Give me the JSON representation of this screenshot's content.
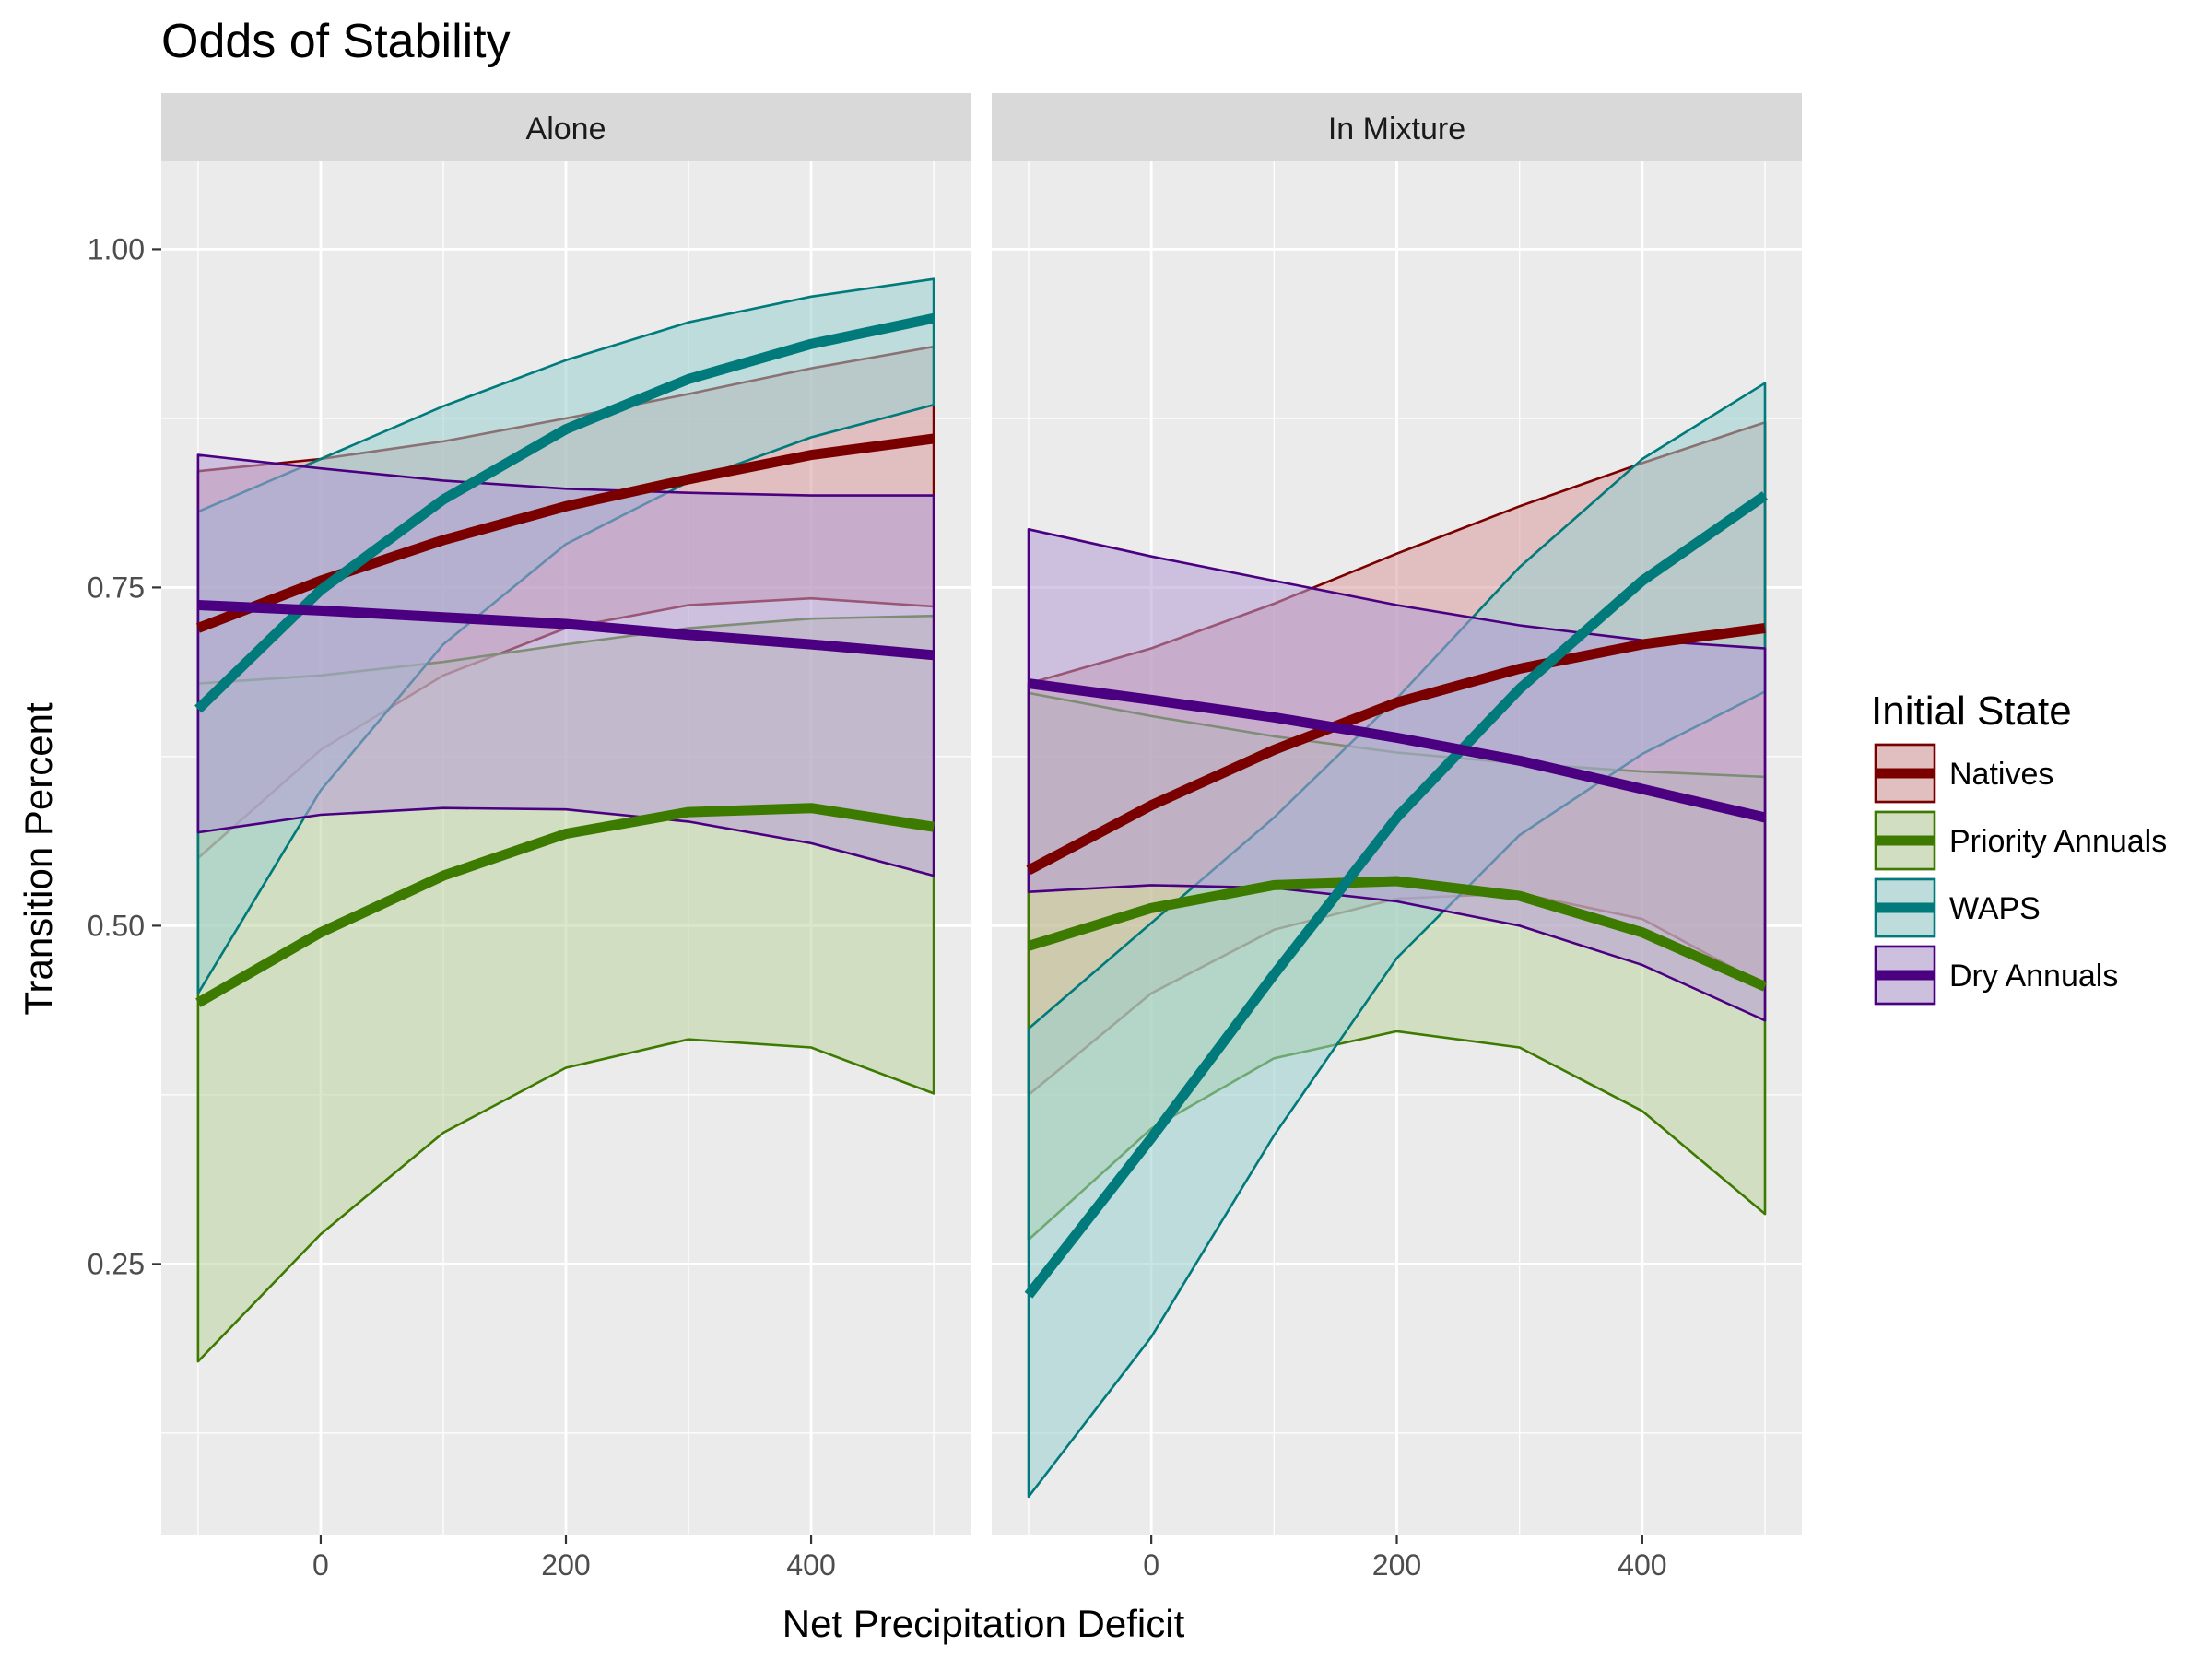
{
  "chart_data": {
    "type": "area",
    "title": "Odds of Stability",
    "xlabel": "Net Precipitation Deficit",
    "ylabel": "Transition Percent",
    "xlim": [
      -130,
      530
    ],
    "ylim": [
      0.05,
      1.065
    ],
    "x_ticks": [
      0,
      200,
      400
    ],
    "x_tick_labels": [
      "0",
      "200",
      "400"
    ],
    "y_ticks": [
      0.25,
      0.5,
      0.75,
      1.0
    ],
    "y_tick_labels": [
      "0.25",
      "0.50",
      "0.75",
      "1.00"
    ],
    "grid": true,
    "legend": {
      "title": "Initial State",
      "placement": "right",
      "entries": [
        "Natives",
        "Priority Annuals",
        "WAPS",
        "Dry Annuals"
      ]
    },
    "x": [
      -100,
      0,
      100,
      200,
      300,
      400,
      500
    ],
    "series_styles": [
      {
        "name": "Natives",
        "color": "#7a0000",
        "fill": "#d8999c"
      },
      {
        "name": "Priority Annuals",
        "color": "#3d7a00",
        "fill": "#bed49e"
      },
      {
        "name": "WAPS",
        "color": "#007a7a",
        "fill": "#99d0d0"
      },
      {
        "name": "Dry Annuals",
        "color": "#4b0082",
        "fill": "#b49cd6"
      }
    ],
    "panels": [
      {
        "strip": "Alone",
        "series": [
          {
            "name": "Natives",
            "values": [
              0.72,
              0.755,
              0.785,
              0.81,
              0.83,
              0.848,
              0.86
            ],
            "lower": [
              0.55,
              0.63,
              0.685,
              0.72,
              0.737,
              0.742,
              0.736
            ],
            "upper": [
              0.836,
              0.845,
              0.858,
              0.875,
              0.893,
              0.912,
              0.928
            ]
          },
          {
            "name": "Priority Annuals",
            "values": [
              0.443,
              0.495,
              0.537,
              0.568,
              0.584,
              0.587,
              0.573
            ],
            "lower": [
              0.178,
              0.272,
              0.347,
              0.395,
              0.416,
              0.41,
              0.376
            ],
            "upper": [
              0.679,
              0.685,
              0.695,
              0.708,
              0.72,
              0.727,
              0.729
            ]
          },
          {
            "name": "WAPS",
            "values": [
              0.66,
              0.748,
              0.815,
              0.867,
              0.904,
              0.93,
              0.949
            ],
            "lower": [
              0.45,
              0.6,
              0.708,
              0.782,
              0.828,
              0.861,
              0.885
            ],
            "upper": [
              0.806,
              0.845,
              0.884,
              0.918,
              0.946,
              0.965,
              0.978
            ]
          },
          {
            "name": "Dry Annuals",
            "values": [
              0.737,
              0.733,
              0.728,
              0.723,
              0.715,
              0.708,
              0.7
            ],
            "lower": [
              0.569,
              0.582,
              0.587,
              0.586,
              0.577,
              0.561,
              0.537
            ],
            "upper": [
              0.848,
              0.838,
              0.829,
              0.823,
              0.82,
              0.818,
              0.818
            ]
          }
        ]
      },
      {
        "strip": "In Mixture",
        "series": [
          {
            "name": "Natives",
            "values": [
              0.541,
              0.589,
              0.63,
              0.665,
              0.69,
              0.708,
              0.72
            ],
            "lower": [
              0.375,
              0.45,
              0.497,
              0.52,
              0.524,
              0.505,
              0.456
            ],
            "upper": [
              0.679,
              0.705,
              0.738,
              0.775,
              0.81,
              0.842,
              0.872
            ]
          },
          {
            "name": "Priority Annuals",
            "values": [
              0.485,
              0.513,
              0.53,
              0.533,
              0.522,
              0.495,
              0.455
            ],
            "lower": [
              0.268,
              0.35,
              0.402,
              0.422,
              0.41,
              0.363,
              0.287
            ],
            "upper": [
              0.672,
              0.655,
              0.64,
              0.628,
              0.62,
              0.614,
              0.61
            ]
          },
          {
            "name": "WAPS",
            "values": [
              0.227,
              0.343,
              0.464,
              0.58,
              0.675,
              0.755,
              0.818
            ],
            "lower": [
              0.078,
              0.196,
              0.345,
              0.476,
              0.567,
              0.627,
              0.673
            ],
            "upper": [
              0.424,
              0.502,
              0.58,
              0.668,
              0.765,
              0.845,
              0.901
            ]
          },
          {
            "name": "Dry Annuals",
            "values": [
              0.679,
              0.667,
              0.654,
              0.639,
              0.622,
              0.601,
              0.58
            ],
            "lower": [
              0.525,
              0.53,
              0.528,
              0.518,
              0.5,
              0.471,
              0.43
            ],
            "upper": [
              0.793,
              0.773,
              0.755,
              0.737,
              0.722,
              0.711,
              0.705
            ]
          }
        ]
      }
    ]
  }
}
